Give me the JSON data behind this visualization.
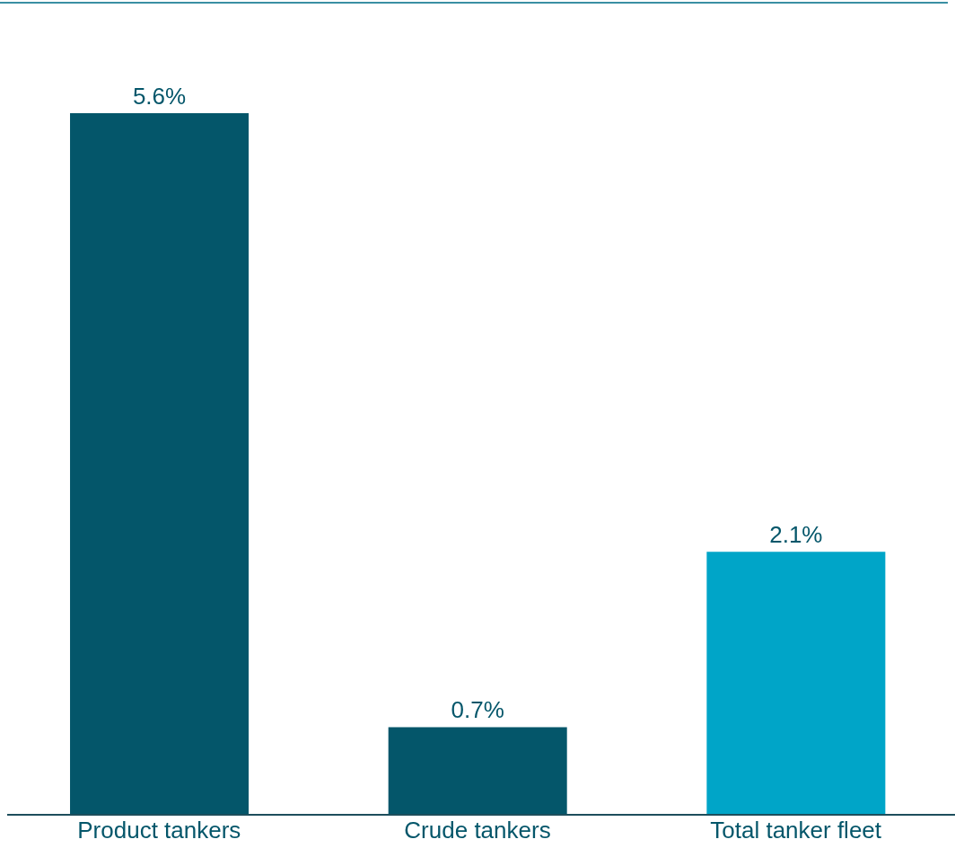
{
  "chart_data": {
    "type": "bar",
    "categories": [
      "Product tankers",
      "Crude tankers",
      "Total tanker fleet"
    ],
    "values": [
      5.6,
      0.7,
      2.1
    ],
    "colors": [
      "#04566a",
      "#04566a",
      "#00a5c8"
    ],
    "value_labels": [
      "5.6%",
      "0.7%",
      "2.1%"
    ]
  }
}
